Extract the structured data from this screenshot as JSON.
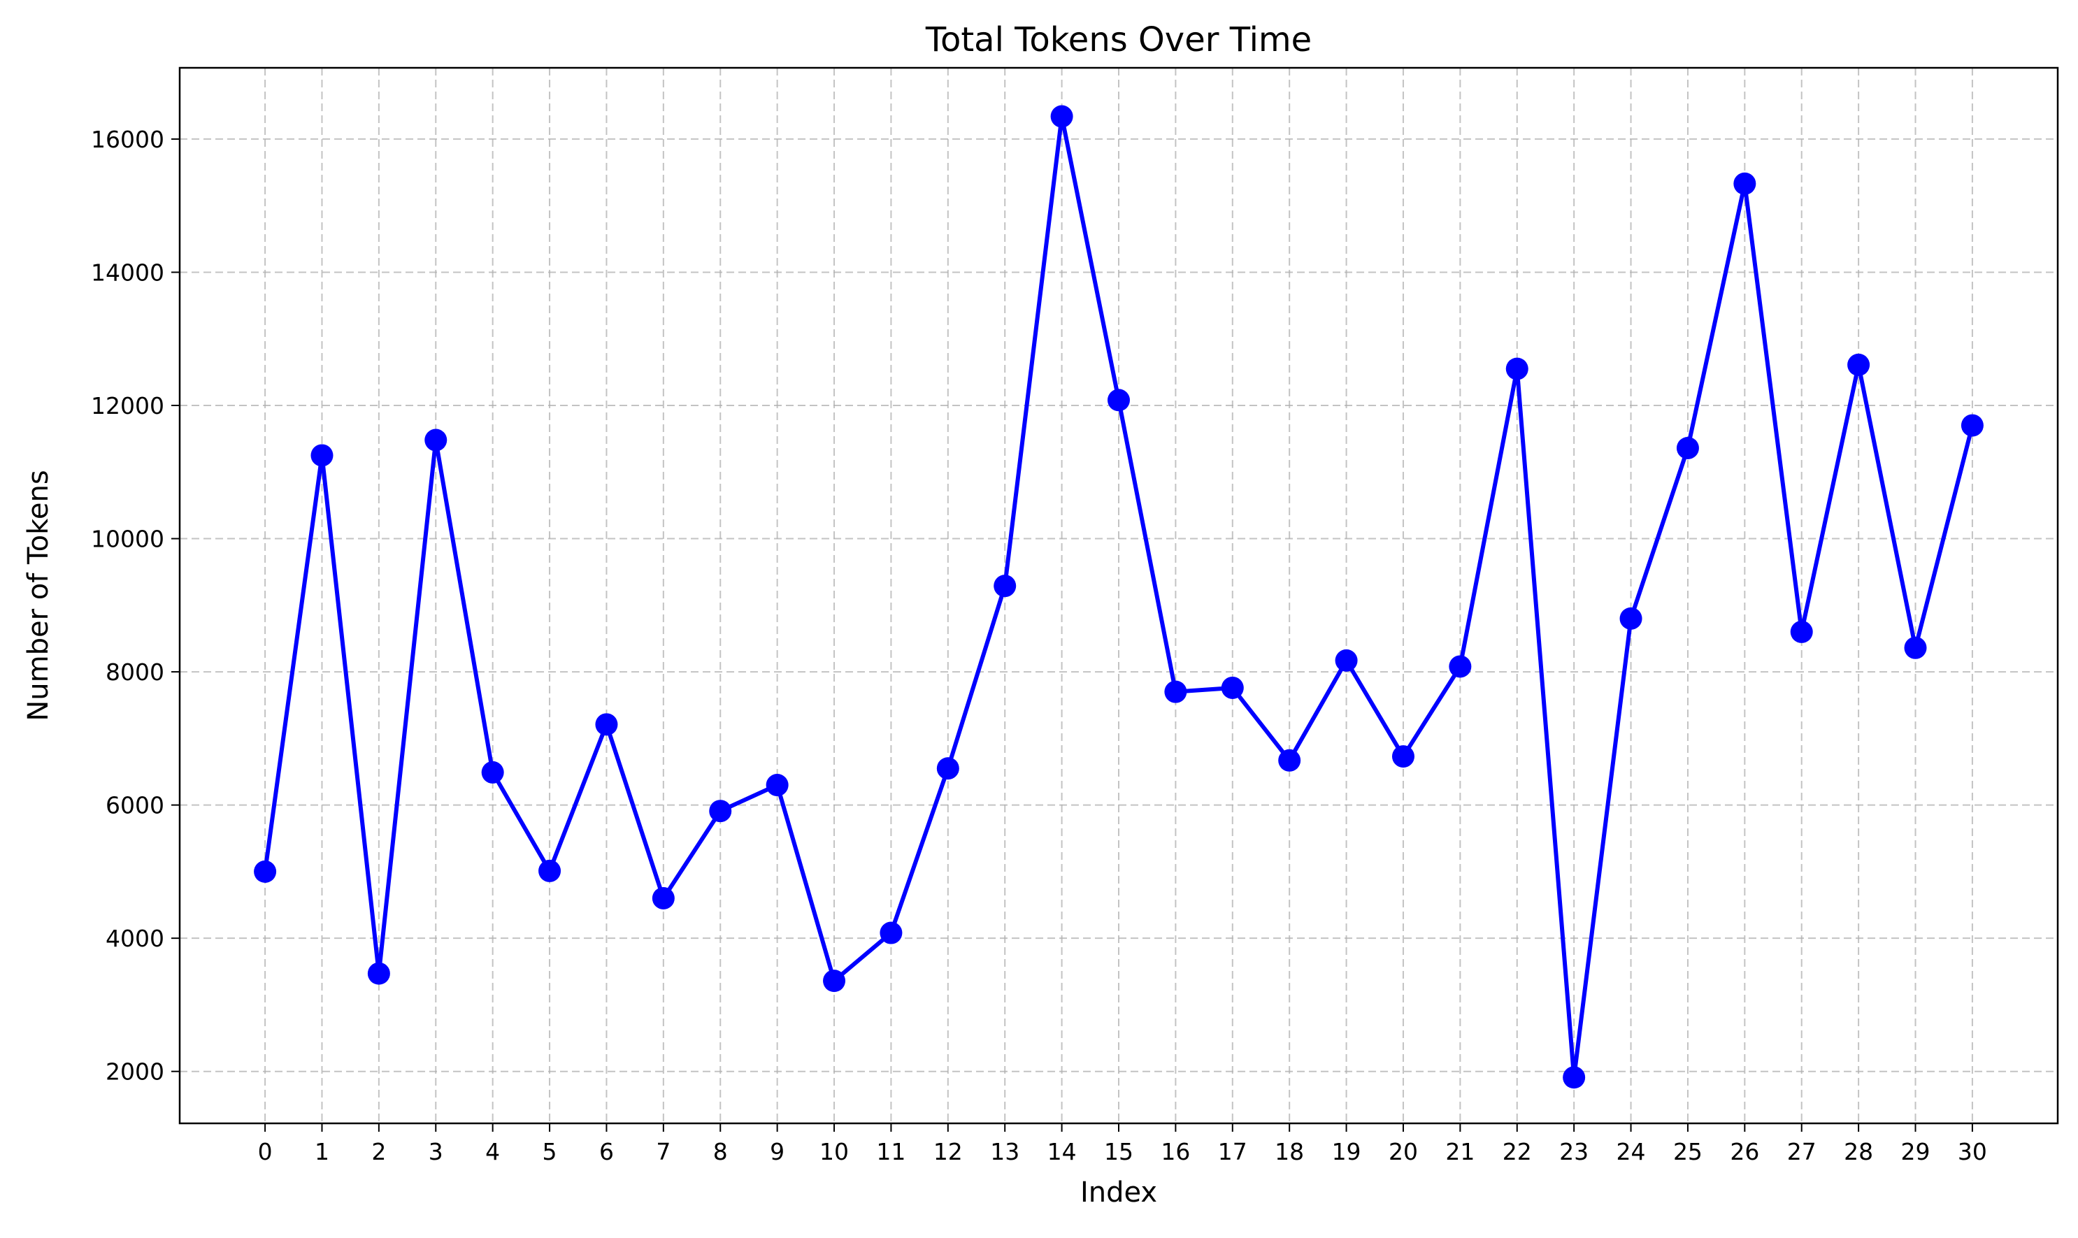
{
  "chart_data": {
    "type": "line",
    "title": "Total Tokens Over Time",
    "xlabel": "Index",
    "ylabel": "Number of Tokens",
    "x": [
      0,
      1,
      2,
      3,
      4,
      5,
      6,
      7,
      8,
      9,
      10,
      11,
      12,
      13,
      14,
      15,
      16,
      17,
      18,
      19,
      20,
      21,
      22,
      23,
      24,
      25,
      26,
      27,
      28,
      29,
      30
    ],
    "series": [
      {
        "values": [
          5000,
          11250,
          3470,
          11480,
          6490,
          5010,
          7210,
          4600,
          5910,
          6300,
          3360,
          4080,
          6550,
          9290,
          16340,
          12080,
          7700,
          7760,
          6670,
          8170,
          6730,
          8080,
          12550,
          1910,
          8800,
          11360,
          15330,
          8600,
          12610,
          8360,
          11700
        ]
      }
    ],
    "yticks": [
      2000,
      4000,
      6000,
      8000,
      10000,
      12000,
      14000,
      16000
    ],
    "xlim": [
      -1.5,
      31.5
    ],
    "ylim": [
      1220,
      17070
    ],
    "grid": true,
    "color": "#0000ff"
  }
}
